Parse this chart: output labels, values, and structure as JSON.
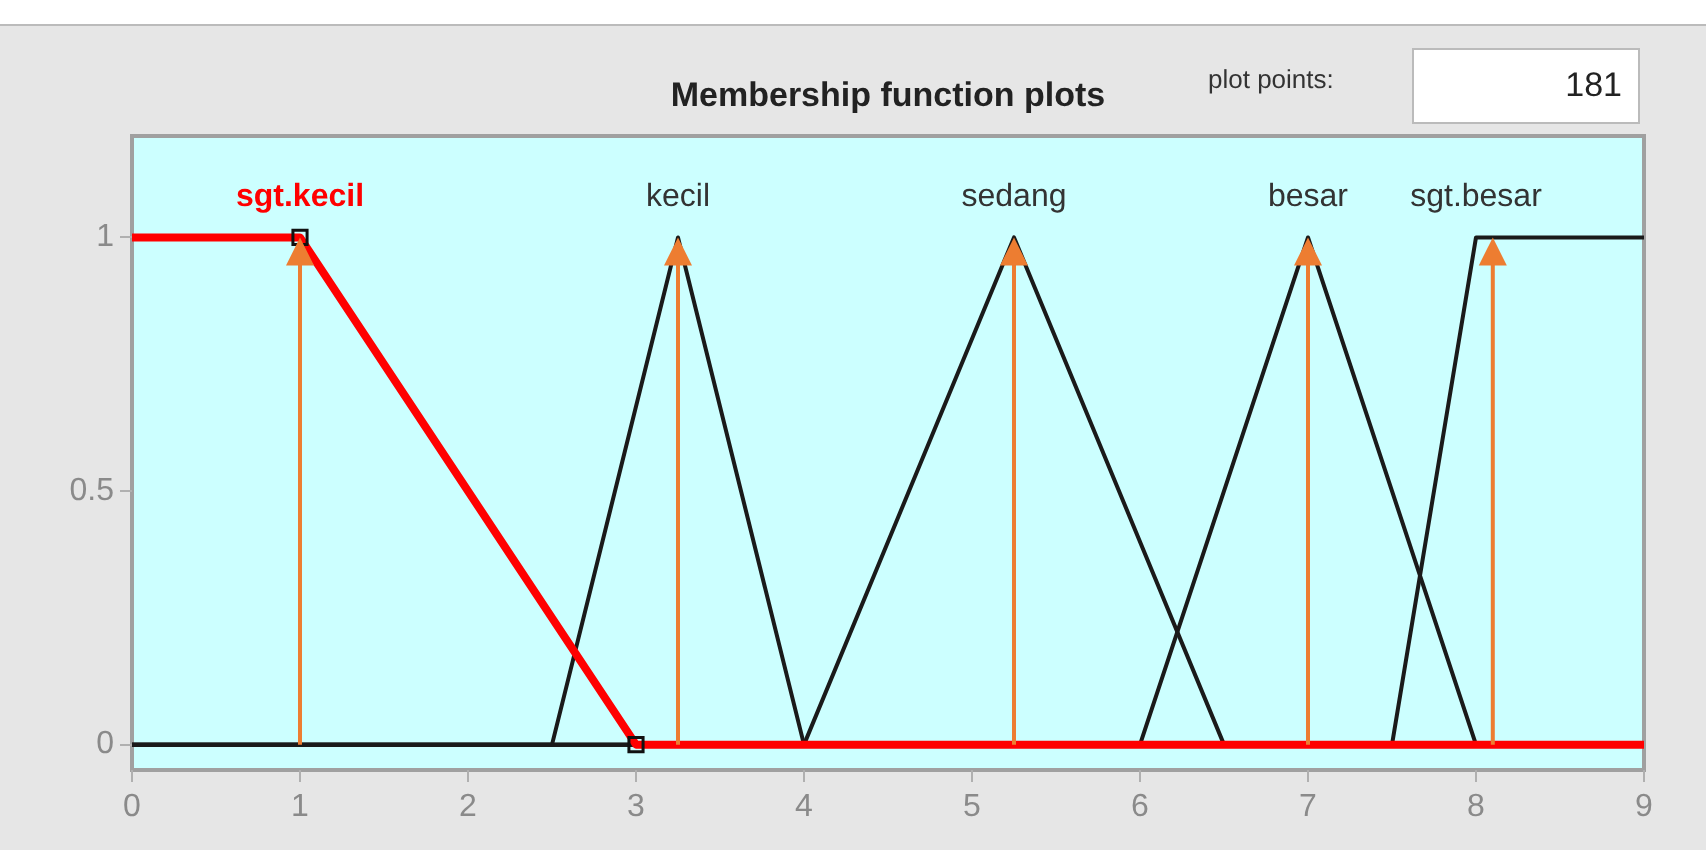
{
  "chart_data": {
    "type": "line",
    "title": "Membership function plots",
    "annotations": [
      "plot points:",
      "181"
    ],
    "xlim": [
      0,
      9
    ],
    "ylim": [
      -0.05,
      1.2
    ],
    "xticks": [
      0,
      1,
      2,
      3,
      4,
      5,
      6,
      7,
      8,
      9
    ],
    "yticks": [
      0,
      0.5,
      1
    ],
    "legend": false,
    "series": [
      {
        "name": "sgt.kecil",
        "color": "#ff0000",
        "marker": "square",
        "x": [
          0,
          1,
          3,
          9
        ],
        "values": [
          1,
          1,
          0,
          0
        ]
      },
      {
        "name": "kecil",
        "color": "#1a1a1a",
        "x": [
          0,
          2.5,
          3.25,
          4,
          9
        ],
        "values": [
          0,
          0,
          1,
          0,
          0
        ]
      },
      {
        "name": "sedang",
        "color": "#1a1a1a",
        "x": [
          0,
          4,
          5.25,
          6.5,
          9
        ],
        "values": [
          0,
          0,
          1,
          0,
          0
        ]
      },
      {
        "name": "besar",
        "color": "#1a1a1a",
        "x": [
          0,
          6,
          7,
          8,
          9
        ],
        "values": [
          0,
          0,
          1,
          0,
          0
        ]
      },
      {
        "name": "sgt.besar",
        "color": "#1a1a1a",
        "x": [
          0,
          7.5,
          8,
          9
        ],
        "values": [
          0,
          0,
          1,
          1
        ]
      }
    ],
    "ref_lines": [
      {
        "axis": "x",
        "value": 1,
        "color": "#ed7d31"
      },
      {
        "axis": "x",
        "value": 3.25,
        "color": "#ed7d31"
      },
      {
        "axis": "x",
        "value": 5.25,
        "color": "#ed7d31"
      },
      {
        "axis": "x",
        "value": 7,
        "color": "#ed7d31"
      },
      {
        "axis": "x",
        "value": 8.1,
        "color": "#ed7d31"
      }
    ]
  }
}
